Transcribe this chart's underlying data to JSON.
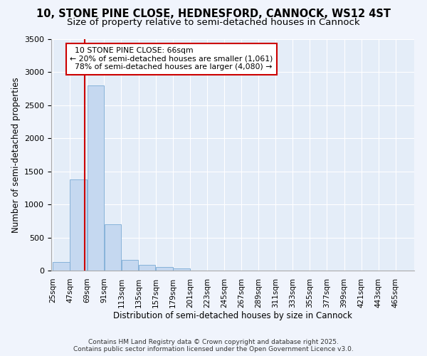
{
  "title": "10, STONE PINE CLOSE, HEDNESFORD, CANNOCK, WS12 4ST",
  "subtitle": "Size of property relative to semi-detached houses in Cannock",
  "xlabel": "Distribution of semi-detached houses by size in Cannock",
  "ylabel": "Number of semi-detached properties",
  "footnote1": "Contains HM Land Registry data © Crown copyright and database right 2025.",
  "footnote2": "Contains public sector information licensed under the Open Government Licence v3.0.",
  "bin_starts": [
    25,
    47,
    69,
    91,
    113,
    135,
    157,
    179,
    201,
    223,
    245,
    267,
    289,
    311,
    333,
    355,
    377,
    399,
    421,
    443,
    465
  ],
  "bin_width": 22,
  "bar_heights": [
    130,
    1380,
    2800,
    700,
    160,
    85,
    50,
    35,
    5,
    2,
    1,
    0,
    0,
    0,
    0,
    0,
    0,
    0,
    0,
    0,
    0
  ],
  "bar_color": "#c5d8f0",
  "bar_edge_color": "#7aaad4",
  "property_size": 66,
  "property_label": "10 STONE PINE CLOSE: 66sqm",
  "pct_smaller": 20,
  "n_smaller": 1061,
  "pct_larger": 78,
  "n_larger": 4080,
  "vline_color": "#cc0000",
  "annotation_box_color": "#cc0000",
  "ylim": [
    0,
    3500
  ],
  "background_color": "#f0f4fc",
  "plot_bg_color": "#e4edf8",
  "grid_color": "#ffffff",
  "title_fontsize": 10.5,
  "subtitle_fontsize": 9.5,
  "axis_label_fontsize": 8.5,
  "tick_fontsize": 7.5,
  "footnote_fontsize": 6.5
}
